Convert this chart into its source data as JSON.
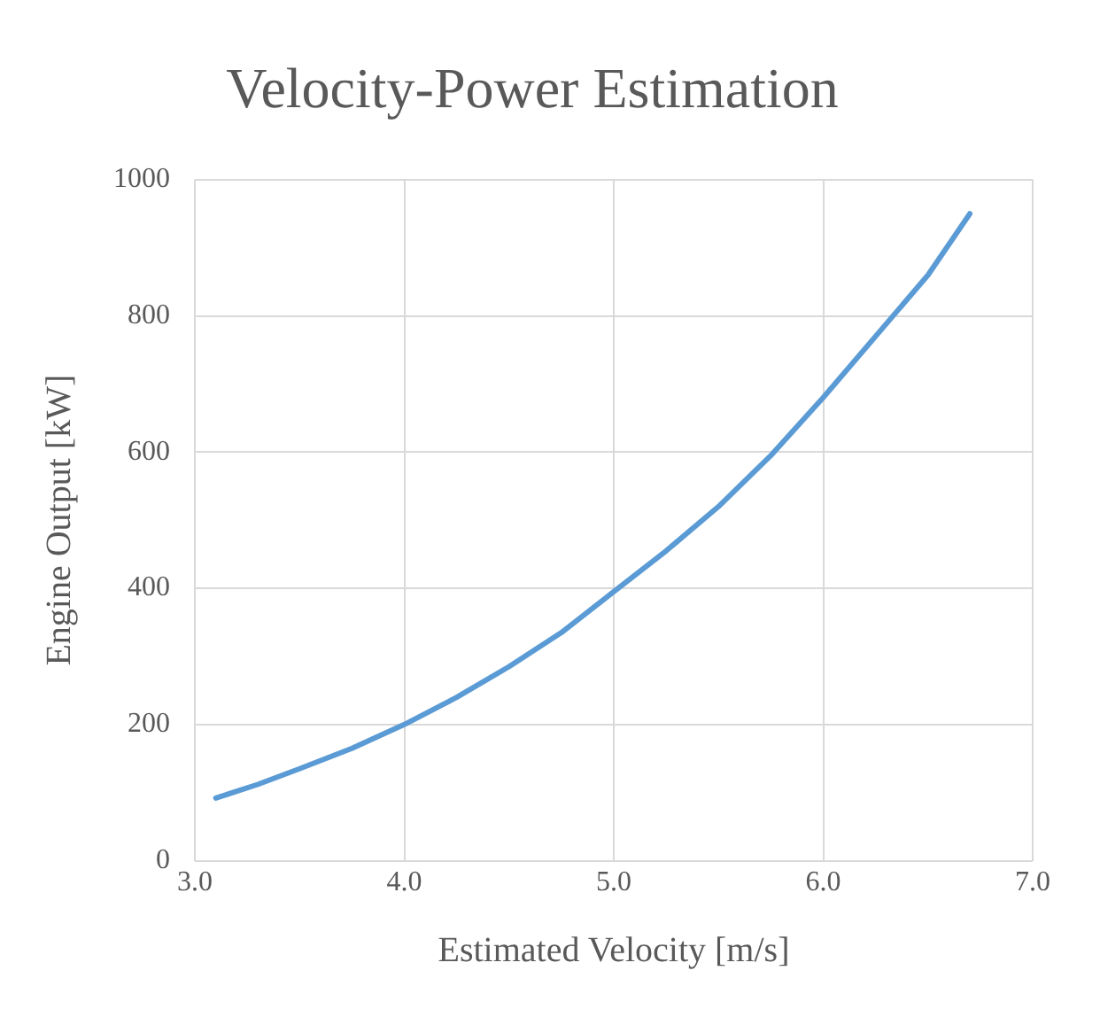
{
  "chart_data": {
    "type": "line",
    "title": "Velocity-Power Estimation",
    "xlabel": "Estimated Velocity [m/s]",
    "ylabel": "Engine Output [kW]",
    "x": [
      3.1,
      3.3,
      3.5,
      3.75,
      4.0,
      4.25,
      4.5,
      4.75,
      5.0,
      5.25,
      5.5,
      5.75,
      6.0,
      6.25,
      6.5,
      6.7
    ],
    "series": [
      {
        "color": "#5b9bd5",
        "values": [
          92,
          112,
          135,
          165,
          200,
          240,
          285,
          335,
          395,
          455,
          520,
          595,
          680,
          770,
          860,
          950
        ]
      }
    ],
    "xlim": [
      3.0,
      7.0
    ],
    "xticks": [
      {
        "value": 3,
        "label": "3.0"
      },
      {
        "value": 4,
        "label": "4.0"
      },
      {
        "value": 5,
        "label": "5.0"
      },
      {
        "value": 6,
        "label": "6.0"
      },
      {
        "value": 7,
        "label": "7.0"
      }
    ],
    "ylim": [
      0,
      1000
    ],
    "yticks": [
      0,
      200,
      400,
      600,
      800,
      1000
    ],
    "grid": true,
    "legend": false,
    "marker": "none",
    "line_style": "solid"
  }
}
